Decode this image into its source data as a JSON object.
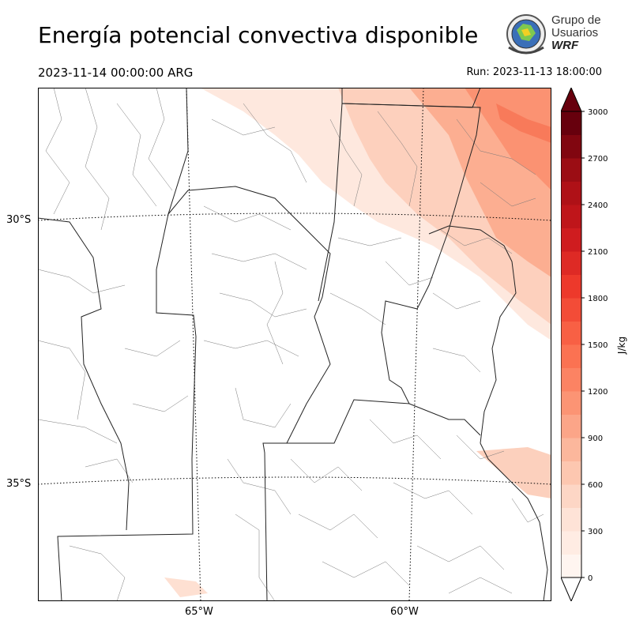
{
  "title": "Energía potencial convectiva disponible",
  "valid_time": "2023-11-14 00:00:00 ARG",
  "run_time": "Run: 2023-11-13 18:00:00",
  "logo": {
    "line1": "Grupo de",
    "line2": "Usuarios",
    "line3": "WRF"
  },
  "axes": {
    "lat_labels": [
      "30°S",
      "35°S"
    ],
    "lon_labels": [
      "65°W",
      "60°W"
    ]
  },
  "colorbar": {
    "unit": "J/kg",
    "ticks": [
      "0",
      "300",
      "600",
      "900",
      "1200",
      "1500",
      "1800",
      "2100",
      "2400",
      "2700",
      "3000"
    ],
    "levels": [
      0,
      150,
      300,
      450,
      600,
      750,
      900,
      1050,
      1200,
      1350,
      1500,
      1650,
      1800,
      1950,
      2100,
      2250,
      2400,
      2550,
      2700,
      2850,
      3000
    ],
    "colors": [
      "#fff5f0",
      "#fee0d2",
      "#fcbba1",
      "#fc9272",
      "#fb6a4a",
      "#ef3b2c",
      "#cb181d",
      "#a50f15",
      "#67000d"
    ],
    "extend": "both"
  }
}
